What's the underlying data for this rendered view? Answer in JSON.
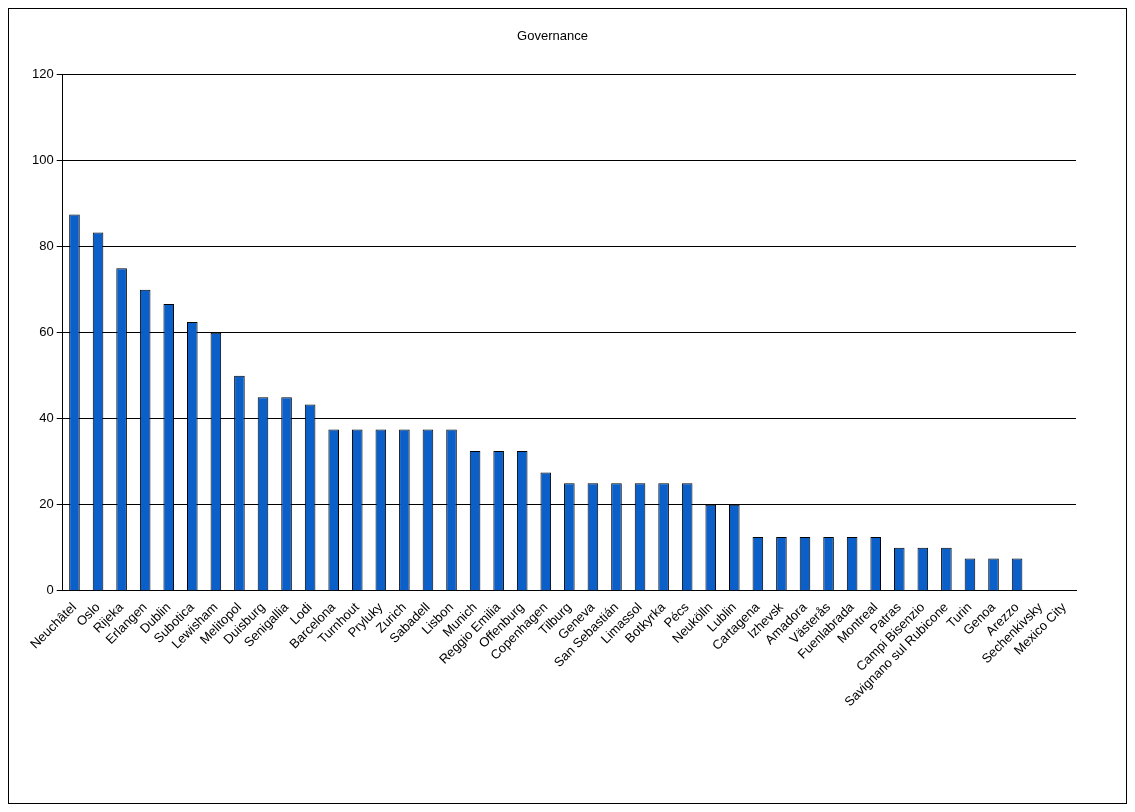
{
  "chart_data": {
    "type": "bar",
    "title": "Governance",
    "categories": [
      "Neuchâtel",
      "Oslo",
      "Rijeka",
      "Erlangen",
      "Dublin",
      "Subotica",
      "Lewisham",
      "Melitopol",
      "Duisburg",
      "Senigallia",
      "Lodi",
      "Barcelona",
      "Turnhout",
      "Pryluky",
      "Zurich",
      "Sabadell",
      "Lisbon",
      "Munich",
      "Reggio Emilia",
      "Offenburg",
      "Copenhagen",
      "Tilburg",
      "Geneva",
      "San Sebastián",
      "Limassol",
      "Botkyrka",
      "Pécs",
      "Neukölln",
      "Lublin",
      "Cartagena",
      "Izhevsk",
      "Amadora",
      "Västerås",
      "Fuenlabrada",
      "Montreal",
      "Patras",
      "Campi Bisenzio",
      "Savignano sul Rubicone",
      "Turin",
      "Genoa",
      "Arezzo",
      "Sechenkivsky",
      "Mexico City"
    ],
    "values": [
      87.5,
      83.3,
      75,
      70,
      66.7,
      62.5,
      60,
      50,
      45,
      45,
      43.3,
      37.5,
      37.5,
      37.5,
      37.5,
      37.5,
      37.5,
      32.5,
      32.5,
      32.5,
      27.5,
      25,
      25,
      25,
      25,
      25,
      25,
      20,
      20,
      12.5,
      12.5,
      12.5,
      12.5,
      12.5,
      12.5,
      10,
      10,
      10,
      7.5,
      7.5,
      7.5,
      0,
      0
    ],
    "color": "#0a5fc8",
    "ylim": [
      0,
      120
    ],
    "yticks": [
      0,
      20,
      40,
      60,
      80,
      100,
      120
    ],
    "grid": "y",
    "legend": false
  }
}
